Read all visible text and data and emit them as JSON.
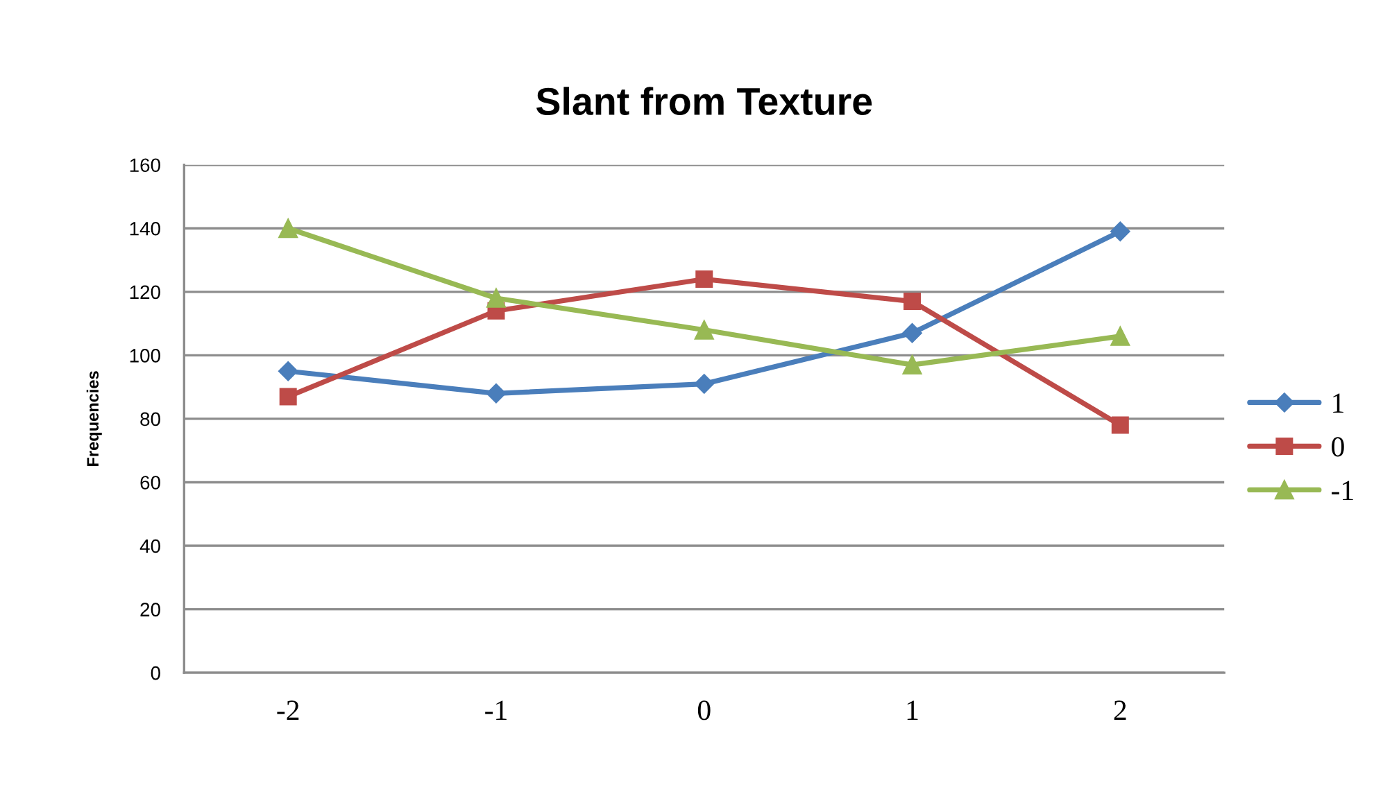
{
  "chart_data": {
    "type": "line",
    "title": "Slant from Texture",
    "ylabel": "Frequencies",
    "categories": [
      "-2",
      "-1",
      "0",
      "1",
      "2"
    ],
    "series": [
      {
        "name": "1",
        "color": "#4a7ebb",
        "marker": "diamond",
        "values": [
          95,
          88,
          91,
          107,
          139
        ]
      },
      {
        "name": "0",
        "color": "#be4b48",
        "marker": "square",
        "values": [
          87,
          114,
          124,
          117,
          78
        ]
      },
      {
        "name": "-1",
        "color": "#98b954",
        "marker": "triangle",
        "values": [
          140,
          118,
          108,
          97,
          106
        ]
      }
    ],
    "ylim": [
      0,
      160
    ],
    "yticks": [
      0,
      20,
      40,
      60,
      80,
      100,
      120,
      140,
      160
    ],
    "grid": "y",
    "legend": "right",
    "line_style": "solid"
  }
}
